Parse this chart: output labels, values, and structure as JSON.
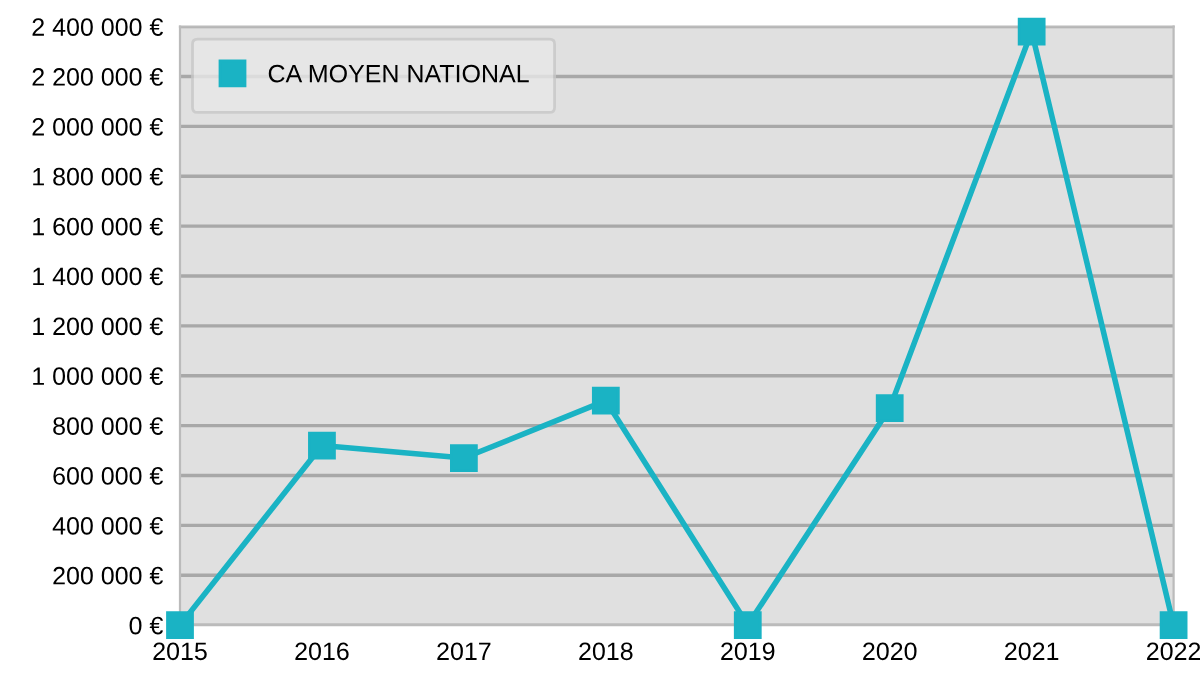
{
  "chart_data": {
    "type": "line",
    "x": [
      2015,
      2016,
      2017,
      2018,
      2019,
      2020,
      2021,
      2022
    ],
    "series": [
      {
        "name": "CA MOYEN NATIONAL",
        "color": "#1ab3c4",
        "values": [
          0,
          720000,
          670000,
          900000,
          0,
          870000,
          2380000,
          0
        ]
      }
    ],
    "xlim": [
      2015,
      2022
    ],
    "xticks": [
      2015,
      2016,
      2017,
      2018,
      2019,
      2020,
      2021,
      2022
    ],
    "ylim": [
      0,
      2400000
    ],
    "yticks": [
      {
        "value": 0,
        "label": "0 €"
      },
      {
        "value": 200000,
        "label": "200 000 €"
      },
      {
        "value": 400000,
        "label": "400 000 €"
      },
      {
        "value": 600000,
        "label": "600 000 €"
      },
      {
        "value": 800000,
        "label": "800 000 €"
      },
      {
        "value": 1000000,
        "label": "1 000 000 €"
      },
      {
        "value": 1200000,
        "label": "1 200 000 €"
      },
      {
        "value": 1400000,
        "label": "1 400 000 €"
      },
      {
        "value": 1600000,
        "label": "1 600 000 €"
      },
      {
        "value": 1800000,
        "label": "1 800 000 €"
      },
      {
        "value": 2000000,
        "label": "2 000 000 €"
      },
      {
        "value": 2200000,
        "label": "2 200 000 €"
      },
      {
        "value": 2400000,
        "label": "2 400 000 €"
      }
    ],
    "grid": "y",
    "legend": "top left",
    "marker": "square",
    "line_style": "solid"
  }
}
